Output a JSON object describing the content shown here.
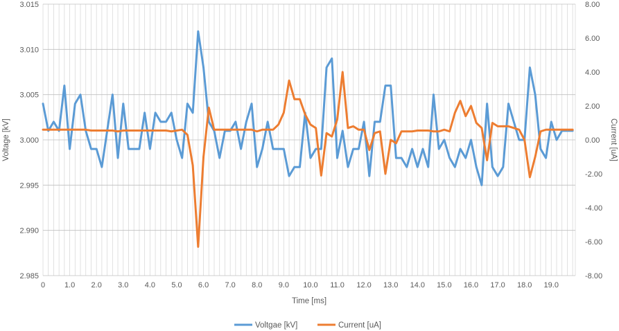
{
  "chart_data": {
    "type": "line",
    "title": "",
    "xlabel": "Time [ms]",
    "ylabel_left": "Voltage [kV]",
    "ylabel_right": "Current [uA]",
    "xlim": [
      0,
      19.9
    ],
    "ylim_left": [
      2.985,
      3.015
    ],
    "ylim_right": [
      -8,
      8
    ],
    "x_ticks": [
      "0",
      "1.0",
      "2.0",
      "3.0",
      "4.0",
      "5.0",
      "6.0",
      "7.0",
      "8.0",
      "9.0",
      "10.0",
      "11.0",
      "12.0",
      "13.0",
      "14.0",
      "15.0",
      "16.0",
      "17.0",
      "18.0",
      "19.0"
    ],
    "y_left_ticks": [
      "2.985",
      "2.990",
      "2.995",
      "3.000",
      "3.005",
      "3.010",
      "3.015"
    ],
    "y_right_ticks": [
      "-8.00",
      "-6.00",
      "-4.00",
      "-2.00",
      "0.00",
      "2.00",
      "4.00",
      "6.00",
      "8.00"
    ],
    "grid": true,
    "legend_position": "bottom",
    "series": [
      {
        "name": "Voltgae [kV]",
        "axis": "left",
        "color": "#5B9BD5",
        "x": [
          0,
          0.2,
          0.4,
          0.6,
          0.8,
          1.0,
          1.2,
          1.4,
          1.6,
          1.8,
          2.0,
          2.2,
          2.4,
          2.6,
          2.8,
          3.0,
          3.2,
          3.4,
          3.6,
          3.8,
          4.0,
          4.2,
          4.4,
          4.6,
          4.8,
          5.0,
          5.2,
          5.4,
          5.6,
          5.8,
          6.0,
          6.2,
          6.4,
          6.6,
          6.8,
          7.0,
          7.2,
          7.4,
          7.6,
          7.8,
          8.0,
          8.2,
          8.4,
          8.6,
          8.8,
          9.0,
          9.2,
          9.4,
          9.6,
          9.8,
          10.0,
          10.2,
          10.4,
          10.6,
          10.8,
          11.0,
          11.2,
          11.4,
          11.6,
          11.8,
          12.0,
          12.2,
          12.4,
          12.6,
          12.8,
          13.0,
          13.2,
          13.4,
          13.6,
          13.8,
          14.0,
          14.2,
          14.4,
          14.6,
          14.8,
          15.0,
          15.2,
          15.4,
          15.6,
          15.8,
          16.0,
          16.2,
          16.4,
          16.6,
          16.8,
          17.0,
          17.2,
          17.4,
          17.6,
          17.8,
          18.0,
          18.2,
          18.4,
          18.6,
          18.8,
          19.0,
          19.2,
          19.4,
          19.6,
          19.8
        ],
        "values": [
          3.004,
          3.001,
          3.002,
          3.001,
          3.006,
          2.999,
          3.004,
          3.005,
          3.001,
          2.999,
          2.999,
          2.997,
          3.001,
          3.005,
          2.998,
          3.004,
          2.999,
          2.999,
          2.999,
          3.003,
          2.999,
          3.003,
          3.002,
          3.002,
          3.003,
          3.0,
          2.998,
          3.004,
          3.003,
          3.012,
          3.008,
          3.002,
          3.001,
          2.998,
          3.001,
          3.001,
          3.002,
          2.999,
          3.002,
          3.004,
          2.997,
          2.999,
          3.002,
          2.999,
          2.999,
          2.999,
          2.996,
          2.997,
          2.997,
          3.003,
          2.998,
          2.999,
          2.999,
          3.008,
          3.009,
          2.998,
          3.001,
          2.997,
          2.999,
          2.999,
          3.002,
          2.996,
          3.002,
          3.002,
          3.006,
          3.006,
          2.998,
          2.998,
          2.997,
          2.999,
          2.997,
          2.999,
          2.997,
          3.005,
          2.999,
          3.0,
          2.998,
          2.997,
          2.999,
          2.998,
          3.0,
          2.997,
          2.995,
          3.004,
          2.997,
          2.996,
          2.997,
          3.004,
          3.002,
          3.0,
          3.0,
          3.008,
          3.005,
          2.999,
          2.998,
          3.002,
          3.0,
          3.001,
          3.001,
          3.001
        ]
      },
      {
        "name": "Current [uA]",
        "axis": "right",
        "color": "#ED7D31",
        "x": [
          0,
          0.2,
          0.4,
          0.6,
          0.8,
          1.0,
          1.2,
          1.4,
          1.6,
          1.8,
          2.0,
          2.2,
          2.4,
          2.6,
          2.8,
          3.0,
          3.2,
          3.4,
          3.6,
          3.8,
          4.0,
          4.2,
          4.4,
          4.6,
          4.8,
          5.0,
          5.2,
          5.4,
          5.6,
          5.8,
          6.0,
          6.2,
          6.4,
          6.6,
          6.8,
          7.0,
          7.2,
          7.4,
          7.6,
          7.8,
          8.0,
          8.2,
          8.4,
          8.6,
          8.8,
          9.0,
          9.2,
          9.4,
          9.6,
          9.8,
          10.0,
          10.2,
          10.4,
          10.6,
          10.8,
          11.0,
          11.2,
          11.4,
          11.6,
          11.8,
          12.0,
          12.2,
          12.4,
          12.6,
          12.8,
          13.0,
          13.2,
          13.4,
          13.6,
          13.8,
          14.0,
          14.2,
          14.4,
          14.6,
          14.8,
          15.0,
          15.2,
          15.4,
          15.6,
          15.8,
          16.0,
          16.2,
          16.4,
          16.6,
          16.8,
          17.0,
          17.2,
          17.4,
          17.6,
          17.8,
          18.0,
          18.2,
          18.4,
          18.6,
          18.8,
          19.0,
          19.2,
          19.4,
          19.6,
          19.8
        ],
        "values": [
          0.6,
          0.6,
          0.6,
          0.6,
          0.6,
          0.6,
          0.6,
          0.6,
          0.6,
          0.55,
          0.55,
          0.55,
          0.55,
          0.55,
          0.5,
          0.55,
          0.55,
          0.55,
          0.55,
          0.55,
          0.55,
          0.55,
          0.55,
          0.55,
          0.5,
          0.55,
          0.6,
          0.3,
          -1.5,
          -6.3,
          -1.0,
          1.9,
          0.6,
          0.6,
          0.6,
          0.6,
          0.6,
          0.6,
          0.6,
          0.6,
          0.5,
          0.6,
          0.6,
          0.6,
          0.9,
          1.6,
          3.5,
          2.4,
          2.4,
          1.5,
          0.9,
          0.7,
          -2.1,
          0.4,
          0.2,
          1.2,
          4.0,
          0.7,
          0.8,
          0.6,
          0.6,
          -0.6,
          0.4,
          0.5,
          -2.0,
          0.0,
          -0.2,
          0.5,
          0.5,
          0.5,
          0.55,
          0.55,
          0.55,
          0.5,
          0.5,
          0.6,
          0.5,
          1.6,
          2.3,
          1.4,
          2.0,
          1.0,
          0.7,
          -1.2,
          1.0,
          0.8,
          0.8,
          0.8,
          0.7,
          0.6,
          0.0,
          -2.2,
          -1.0,
          0.5,
          0.6,
          0.6,
          0.6,
          0.6,
          0.6,
          0.6
        ]
      }
    ]
  }
}
